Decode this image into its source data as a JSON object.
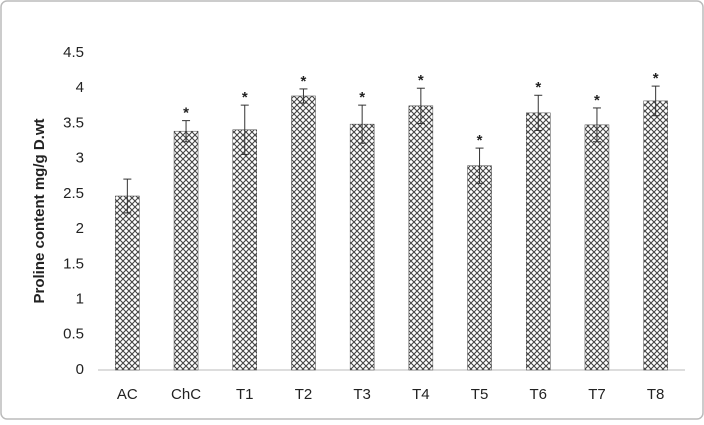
{
  "chart_data": {
    "type": "bar",
    "y_label": "Proline content mg/g D.wt",
    "categories": [
      "AC",
      "ChC",
      "T1",
      "T2",
      "T3",
      "T4",
      "T5",
      "T6",
      "T7",
      "T8"
    ],
    "values": [
      2.47,
      3.39,
      3.41,
      3.89,
      3.49,
      3.75,
      2.9,
      3.65,
      3.48,
      3.82
    ],
    "errors": [
      0.24,
      0.15,
      0.35,
      0.1,
      0.27,
      0.25,
      0.25,
      0.25,
      0.24,
      0.21
    ],
    "annotations": [
      null,
      "*",
      "*",
      "*",
      "*",
      "*",
      "*",
      "*",
      "*",
      "*"
    ],
    "color": "#444444",
    "ylim": [
      0,
      4.5
    ],
    "yticks": [
      0,
      0.5,
      1,
      1.5,
      2,
      2.5,
      3,
      3.5,
      4,
      4.5
    ],
    "grid": false
  }
}
